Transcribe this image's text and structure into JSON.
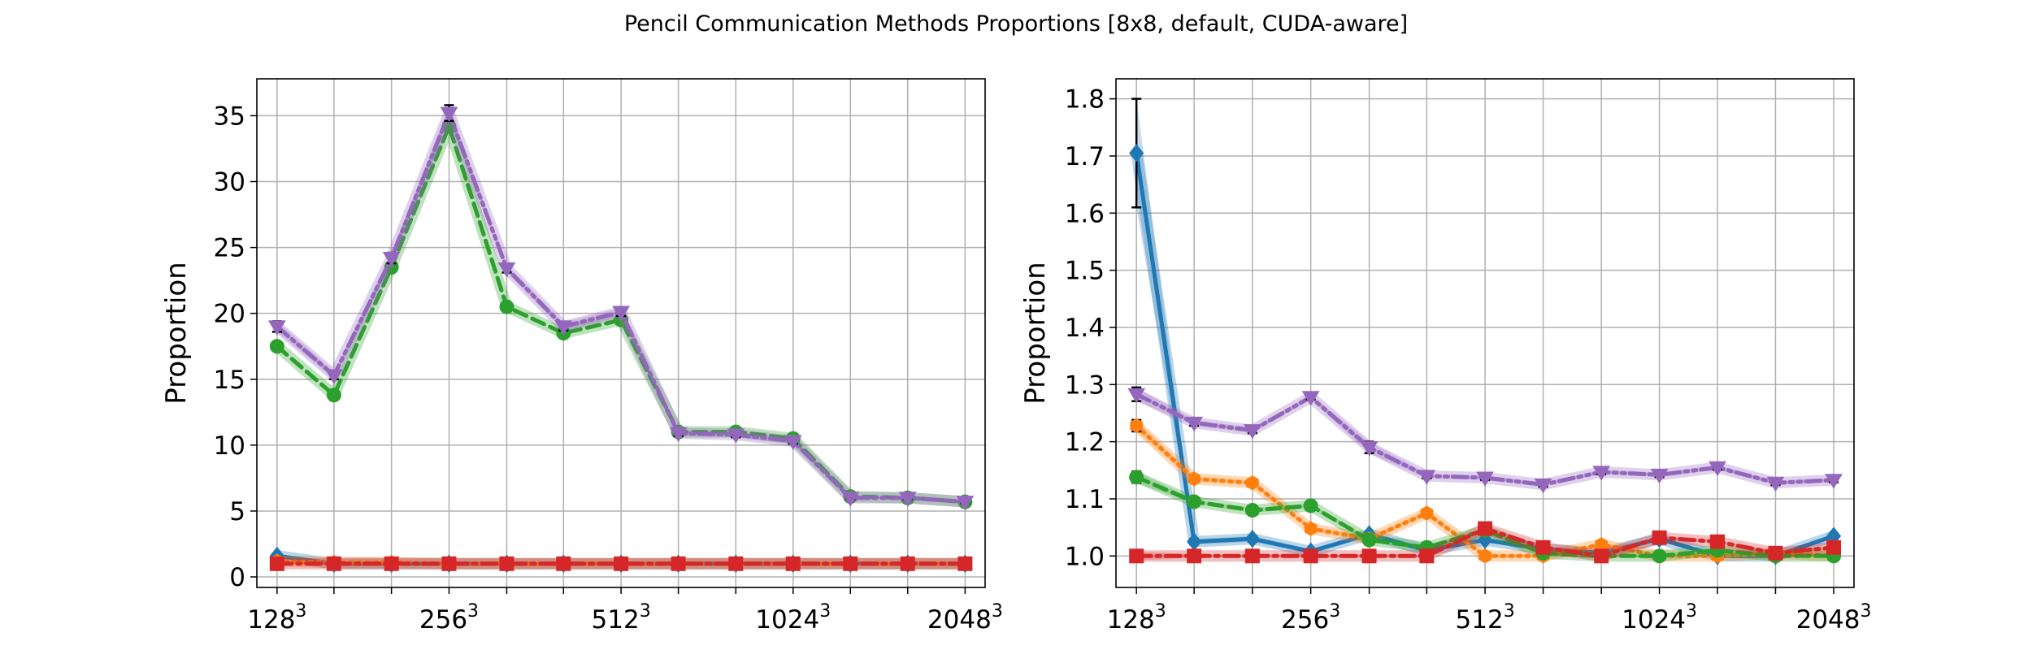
{
  "figure_title": "Pencil Communication Methods Proportions [8x8, default, CUDA-aware]",
  "colors": {
    "blue": "#1f77b4",
    "orange": "#ff7f0e",
    "green": "#2ca02c",
    "red": "#d62728",
    "purple": "#9467bd",
    "grid": "#b0b0b0",
    "errorbar": "#000000"
  },
  "chart_data": [
    {
      "type": "line",
      "title": "",
      "xlabel": "",
      "ylabel": "Proportion",
      "x_scale": "log2",
      "x": [
        128,
        161,
        203,
        256,
        323,
        406,
        512,
        645,
        813,
        1024,
        1290,
        1625,
        2048
      ],
      "x_ticks": [
        {
          "value": 128,
          "base": "128",
          "exp": "3"
        },
        {
          "value": 256,
          "base": "256",
          "exp": "3"
        },
        {
          "value": 512,
          "base": "512",
          "exp": "3"
        },
        {
          "value": 1024,
          "base": "1024",
          "exp": "3"
        },
        {
          "value": 2048,
          "base": "2048",
          "exp": "3"
        }
      ],
      "xlim": [
        118,
        2220
      ],
      "y_ticks": [
        0,
        5,
        10,
        15,
        20,
        25,
        30,
        35
      ],
      "ylim": [
        -0.8,
        37.8
      ],
      "grid": true,
      "series": [
        {
          "color": "blue",
          "dash": "solid",
          "marker": "diamond",
          "values": [
            1.6,
            1.0,
            1.0,
            1.0,
            1.0,
            1.0,
            1.0,
            1.0,
            1.0,
            1.0,
            1.0,
            1.0,
            1.0
          ]
        },
        {
          "color": "orange",
          "dash": "dot",
          "marker": "hexagon",
          "values": [
            1.2,
            1.1,
            1.1,
            1.0,
            1.0,
            1.0,
            1.0,
            1.0,
            1.0,
            1.0,
            1.0,
            1.0,
            1.0
          ]
        },
        {
          "color": "green",
          "dash": "dash",
          "marker": "circle",
          "values": [
            17.5,
            13.8,
            23.5,
            34.2,
            20.5,
            18.5,
            19.5,
            11.0,
            11.0,
            10.5,
            6.1,
            6.0,
            5.7
          ]
        },
        {
          "color": "red",
          "dash": "dashdot",
          "marker": "square",
          "values": [
            1.0,
            1.0,
            1.0,
            1.0,
            1.0,
            1.0,
            1.0,
            1.0,
            1.0,
            1.0,
            1.0,
            1.0,
            1.0
          ]
        },
        {
          "color": "purple",
          "dash": "dashdotdot",
          "marker": "triangle-down",
          "values": [
            19.0,
            15.3,
            24.2,
            35.2,
            23.4,
            19.0,
            20.1,
            10.9,
            10.8,
            10.3,
            6.0,
            6.0,
            5.7
          ],
          "errors": [
            0.4,
            0.3,
            0.4,
            0.6,
            0.3,
            0.3,
            0.3,
            0.2,
            0.2,
            0.2,
            0.1,
            0.1,
            0.1
          ]
        }
      ]
    },
    {
      "type": "line",
      "title": "",
      "xlabel": "",
      "ylabel": "Proportion",
      "x_scale": "log2",
      "x": [
        128,
        161,
        203,
        256,
        323,
        406,
        512,
        645,
        813,
        1024,
        1290,
        1625,
        2048
      ],
      "x_ticks": [
        {
          "value": 128,
          "base": "128",
          "exp": "3"
        },
        {
          "value": 256,
          "base": "256",
          "exp": "3"
        },
        {
          "value": 512,
          "base": "512",
          "exp": "3"
        },
        {
          "value": 1024,
          "base": "1024",
          "exp": "3"
        },
        {
          "value": 2048,
          "base": "2048",
          "exp": "3"
        }
      ],
      "xlim": [
        118,
        2220
      ],
      "y_ticks": [
        1.0,
        1.1,
        1.2,
        1.3,
        1.4,
        1.5,
        1.6,
        1.7,
        1.8
      ],
      "ylim": [
        0.945,
        1.835
      ],
      "grid": true,
      "series": [
        {
          "color": "blue",
          "dash": "solid",
          "marker": "diamond",
          "values": [
            1.705,
            1.025,
            1.03,
            1.008,
            1.038,
            1.01,
            1.028,
            1.012,
            1.005,
            1.03,
            1.0,
            1.0,
            1.035
          ],
          "errors": [
            0.095,
            0.005,
            0.005,
            0.004,
            0.004,
            0.004,
            0.004,
            0.004,
            0.004,
            0.004,
            0.004,
            0.004,
            0.004
          ]
        },
        {
          "color": "orange",
          "dash": "dot",
          "marker": "hexagon",
          "values": [
            1.228,
            1.135,
            1.128,
            1.048,
            1.03,
            1.075,
            1.0,
            1.0,
            1.02,
            1.0,
            1.0,
            1.005,
            1.0
          ],
          "errors": [
            0.01,
            0.004,
            0.004,
            0.004,
            0.004,
            0.005,
            0.003,
            0.003,
            0.003,
            0.003,
            0.003,
            0.003,
            0.003
          ]
        },
        {
          "color": "green",
          "dash": "dash",
          "marker": "circle",
          "values": [
            1.138,
            1.095,
            1.08,
            1.088,
            1.028,
            1.015,
            1.045,
            1.005,
            1.0,
            1.0,
            1.01,
            1.0,
            1.0
          ],
          "errors": [
            0.01,
            0.004,
            0.004,
            0.004,
            0.004,
            0.004,
            0.004,
            0.003,
            0.003,
            0.003,
            0.003,
            0.003,
            0.003
          ]
        },
        {
          "color": "red",
          "dash": "dashdot",
          "marker": "square",
          "values": [
            1.0,
            1.0,
            1.0,
            1.0,
            1.0,
            1.0,
            1.048,
            1.015,
            1.0,
            1.032,
            1.025,
            1.005,
            1.015
          ],
          "errors": [
            0.008,
            0.003,
            0.003,
            0.003,
            0.003,
            0.003,
            0.003,
            0.003,
            0.003,
            0.003,
            0.003,
            0.003,
            0.003
          ]
        },
        {
          "color": "purple",
          "dash": "dashdotdot",
          "marker": "triangle-down",
          "values": [
            1.283,
            1.233,
            1.22,
            1.278,
            1.19,
            1.14,
            1.137,
            1.125,
            1.147,
            1.142,
            1.155,
            1.128,
            1.133
          ],
          "errors": [
            0.012,
            0.005,
            0.005,
            0.004,
            0.01,
            0.004,
            0.004,
            0.004,
            0.004,
            0.004,
            0.004,
            0.004,
            0.004
          ]
        }
      ]
    }
  ]
}
